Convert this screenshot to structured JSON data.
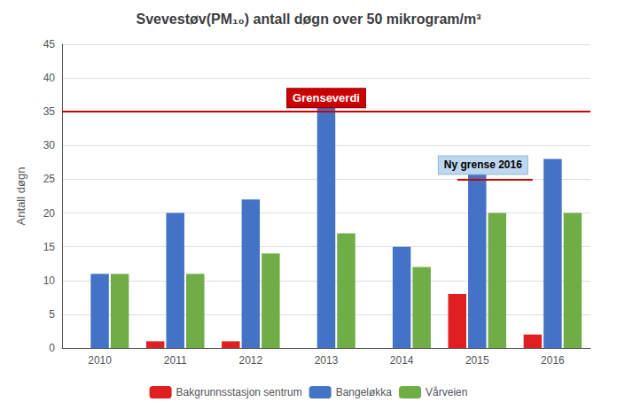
{
  "chart_data": {
    "type": "bar",
    "title": "Svevestøv(PM₁₀) antall døgn over 50 mikrogram/m³",
    "ylabel": "Antall døgn",
    "categories": [
      "2010",
      "2011",
      "2012",
      "2013",
      "2014",
      "2015",
      "2016"
    ],
    "series": [
      {
        "name": "Bakgrunnsstasjon sentrum",
        "color": "#e02020",
        "values": [
          0,
          1,
          1,
          0,
          0,
          8,
          2
        ]
      },
      {
        "name": "Bangeløkka",
        "color": "#4472c4",
        "values": [
          11,
          20,
          22,
          38,
          15,
          26,
          28
        ]
      },
      {
        "name": "Vårveien",
        "color": "#70ad47",
        "values": [
          11,
          11,
          14,
          17,
          12,
          20,
          20
        ]
      }
    ],
    "ylim": [
      0,
      45
    ],
    "yticks": [
      0,
      5,
      10,
      15,
      20,
      25,
      30,
      35,
      40,
      45
    ],
    "grid": true,
    "legend": "bottom",
    "annotations": [
      {
        "text": "Grenseverdi",
        "y": 35,
        "color": "#cc0000"
      },
      {
        "text": "Ny grense 2016",
        "y": 25,
        "color": "#cc0000"
      }
    ]
  }
}
